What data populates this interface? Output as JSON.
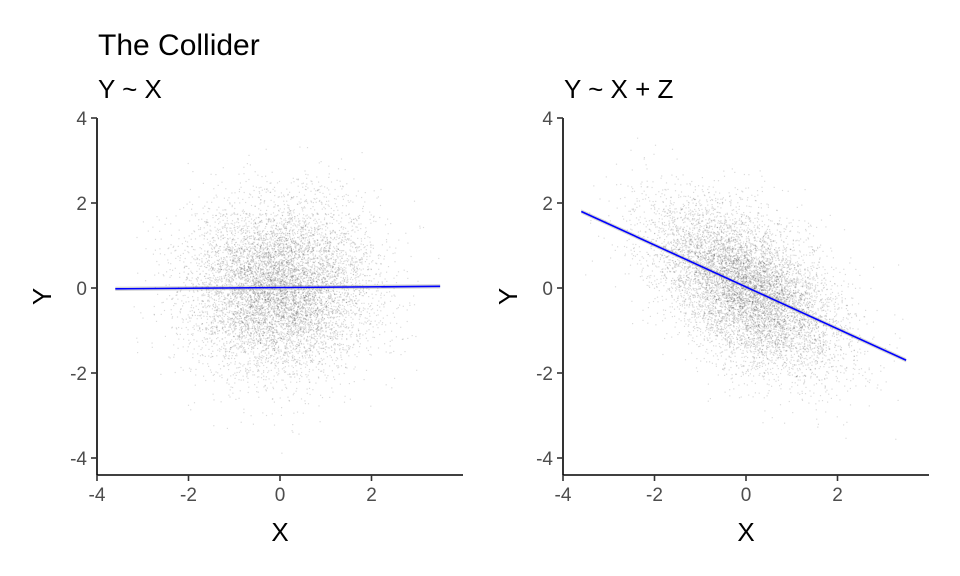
{
  "title": "The Collider",
  "colors": {
    "point": "#000000",
    "fit_line": "#0000ff",
    "ribbon": "#999999"
  },
  "chart_data": [
    {
      "type": "scatter",
      "title": "Y ~ X",
      "xlabel": "X",
      "ylabel": "Y",
      "xlim": [
        -4,
        4
      ],
      "ylim": [
        -4.4,
        4
      ],
      "xticks": [
        "-4",
        "-2",
        "0",
        "2"
      ],
      "yticks": [
        "4",
        "2",
        "0",
        "-2",
        "-4"
      ],
      "grid": false,
      "points": {
        "description_only": false,
        "n": 8000,
        "x_mean": 0,
        "x_sd": 1,
        "y_mean": 0,
        "y_sd": 1,
        "correlation": 0,
        "x_range": [
          -3.6,
          3.5
        ],
        "y_range": [
          -3.9,
          3.6
        ]
      },
      "fit_line": {
        "x": [
          -3.6,
          3.5
        ],
        "y": [
          -0.02,
          0.04
        ]
      }
    },
    {
      "type": "scatter",
      "title": "Y ~ X + Z",
      "xlabel": "X",
      "ylabel": "Y",
      "xlim": [
        -4,
        4
      ],
      "ylim": [
        -4.4,
        4
      ],
      "xticks": [
        "-4",
        "-2",
        "0",
        "2"
      ],
      "yticks": [
        "4",
        "2",
        "0",
        "-2",
        "-4"
      ],
      "grid": false,
      "points": {
        "n": 8000,
        "x_mean": 0,
        "x_sd": 1,
        "y_mean": 0,
        "y_sd": 1,
        "correlation": -0.5,
        "x_range": [
          -3.6,
          3.5
        ],
        "y_range": [
          -3.9,
          3.6
        ]
      },
      "fit_line": {
        "x": [
          -3.6,
          3.5
        ],
        "y": [
          1.8,
          -1.7
        ]
      }
    }
  ]
}
